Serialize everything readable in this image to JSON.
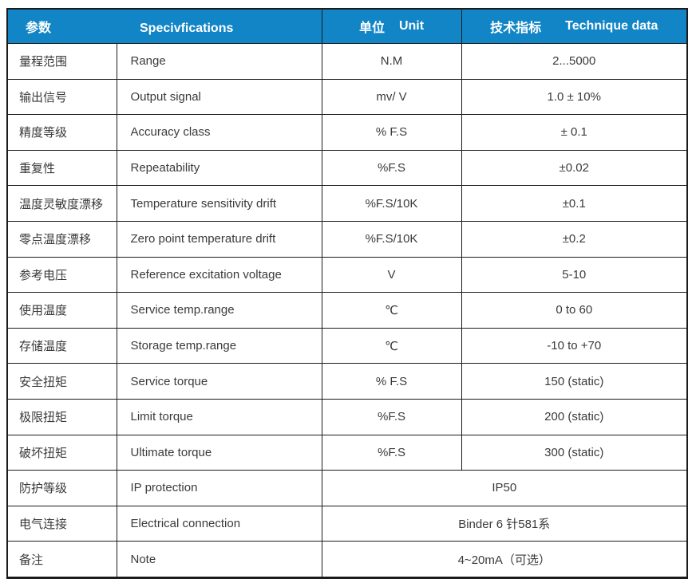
{
  "table": {
    "header": {
      "param": "参数",
      "spec": "Specivfications",
      "unit_cn": "单位",
      "unit_en": "Unit",
      "data_cn": "技术指标",
      "data_en": "Technique data"
    },
    "rows": [
      {
        "param": "量程范围",
        "spec": "Range",
        "unit": "N.M",
        "value": "2...5000"
      },
      {
        "param": "输出信号",
        "spec": "Output signal",
        "unit": "mv/ V",
        "value": "1.0 ± 10%"
      },
      {
        "param": "精度等级",
        "spec": "Accuracy class",
        "unit": "% F.S",
        "value": "± 0.1"
      },
      {
        "param": "重复性",
        "spec": "Repeatability",
        "unit": "%F.S",
        "value": "±0.02"
      },
      {
        "param": "温度灵敏度漂移",
        "spec": "Temperature sensitivity drift",
        "unit": "%F.S/10K",
        "value": "±0.1"
      },
      {
        "param": "零点温度漂移",
        "spec": "Zero point temperature drift",
        "unit": "%F.S/10K",
        "value": "±0.2"
      },
      {
        "param": "参考电压",
        "spec": "Reference excitation voltage",
        "unit": "V",
        "value": "5-10"
      },
      {
        "param": "使用温度",
        "spec": "Service temp.range",
        "unit": "℃",
        "value": "0 to 60"
      },
      {
        "param": "存储温度",
        "spec": "Storage temp.range",
        "unit": "℃",
        "value": "-10 to +70"
      },
      {
        "param": "安全扭矩",
        "spec": "Service torque",
        "unit": "% F.S",
        "value": "150 (static)"
      },
      {
        "param": "极限扭矩",
        "spec": "Limit torque",
        "unit": "%F.S",
        "value": "200 (static)"
      },
      {
        "param": "破坏扭矩",
        "spec": "Ultimate torque",
        "unit": "%F.S",
        "value": "300 (static)"
      },
      {
        "param": "防护等级",
        "spec": "IP protection",
        "value": "IP50"
      },
      {
        "param": "电气连接",
        "spec": "Electrical connection",
        "value": "Binder 6 针581系"
      },
      {
        "param": "备注",
        "spec": "Note",
        "value": "4~20mA（可选）"
      }
    ]
  },
  "colors": {
    "header_background": "#1185c6",
    "header_text": "#ffffff",
    "border": "#1b1b1b",
    "body_text": "#3a3a3a"
  }
}
